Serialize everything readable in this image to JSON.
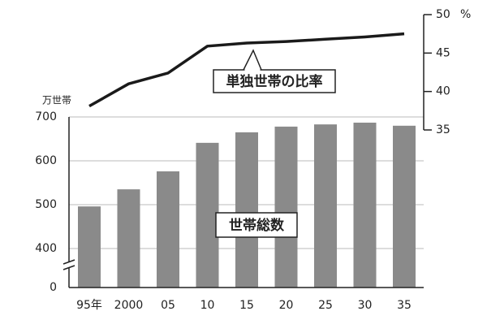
{
  "chart_data": {
    "type": "bar_line",
    "y_label": "万世帯",
    "categories": [
      "95年",
      "2000",
      "05",
      "10",
      "15",
      "20",
      "25",
      "30",
      "35"
    ],
    "series": [
      {
        "name": "世帯総数",
        "type": "bar",
        "color": "#8a8a8a",
        "values": [
          496,
          535,
          576,
          641,
          665,
          678,
          683,
          687,
          680
        ]
      },
      {
        "name": "単独世帯の比率",
        "type": "line",
        "axis": "y2",
        "color": "#1a1a1a",
        "values": [
          38.1,
          41.0,
          42.4,
          45.9,
          46.3,
          46.5,
          46.8,
          47.1,
          47.5
        ]
      }
    ],
    "ylim": [
      0,
      700
    ],
    "ybreak": [
      0,
      400
    ],
    "yticks": [
      0,
      400,
      500,
      600,
      700
    ],
    "y2lim": [
      35,
      50
    ],
    "y2ticks": [
      35,
      40,
      45,
      50
    ],
    "y2_unit": "%",
    "grid": true
  }
}
